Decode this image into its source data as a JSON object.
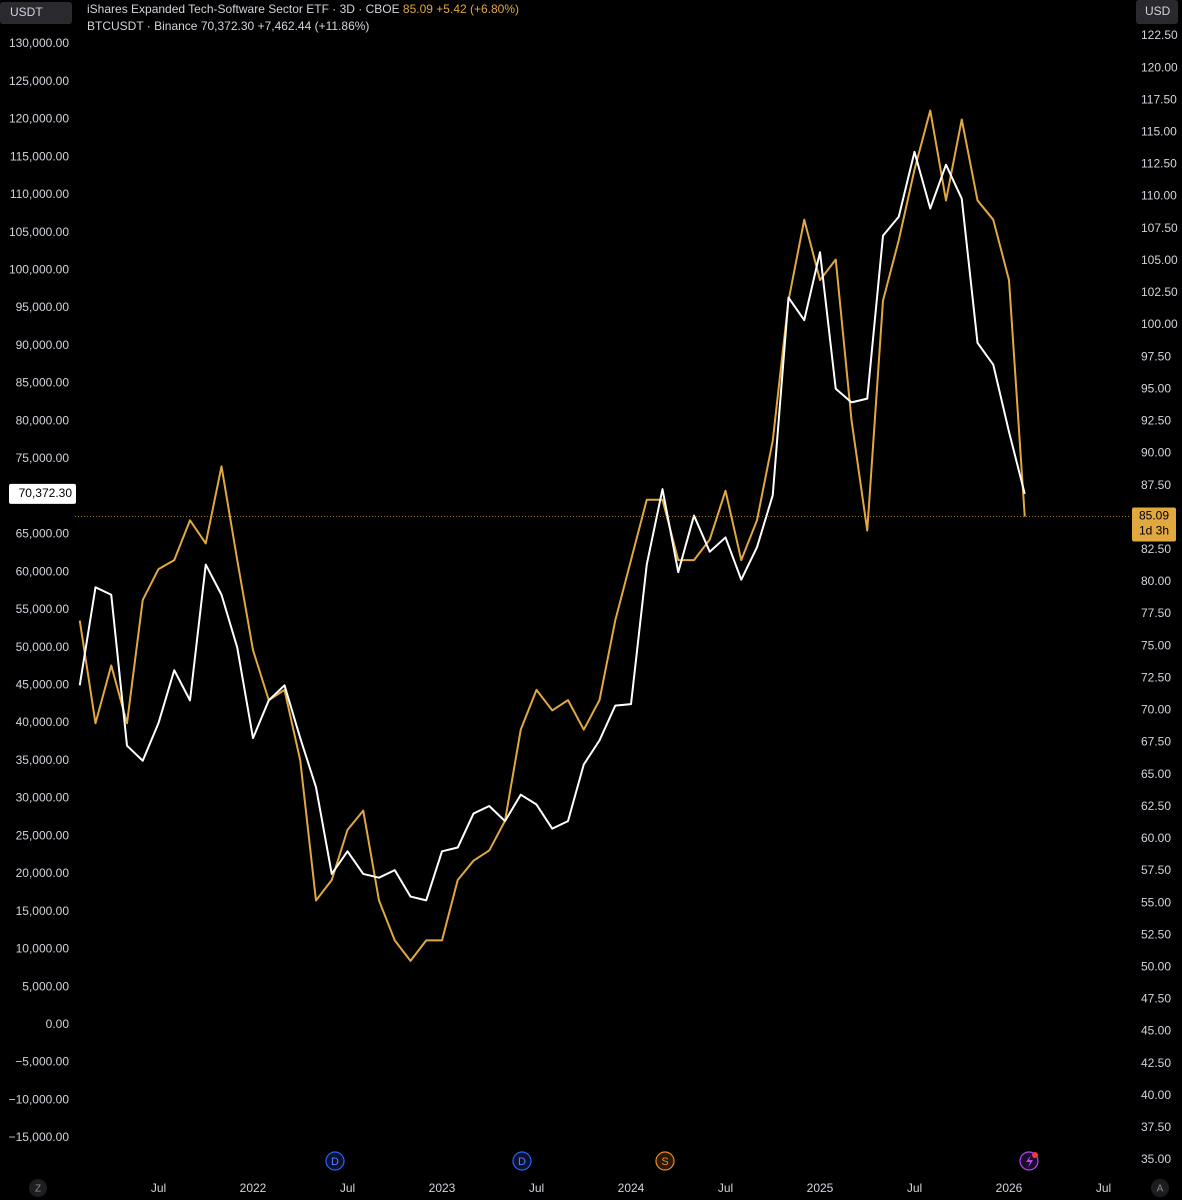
{
  "chart_data": {
    "type": "line",
    "x": [
      "2021-02",
      "2021-03",
      "2021-04",
      "2021-05",
      "2021-06",
      "2021-07",
      "2021-08",
      "2021-09",
      "2021-10",
      "2021-11",
      "2021-12",
      "2022-01",
      "2022-02",
      "2022-03",
      "2022-04",
      "2022-05",
      "2022-06",
      "2022-07",
      "2022-08",
      "2022-09",
      "2022-10",
      "2022-11",
      "2022-12",
      "2023-01",
      "2023-02",
      "2023-03",
      "2023-04",
      "2023-05",
      "2023-06",
      "2023-07",
      "2023-08",
      "2023-09",
      "2023-10",
      "2023-11",
      "2023-12",
      "2024-01",
      "2024-02",
      "2024-03",
      "2024-04",
      "2024-05",
      "2024-06",
      "2024-07",
      "2024-08",
      "2024-09",
      "2024-10",
      "2024-11",
      "2024-12",
      "2025-01",
      "2025-02",
      "2025-03",
      "2025-04",
      "2025-05",
      "2025-06",
      "2025-07",
      "2025-08",
      "2025-09",
      "2025-10",
      "2025-11",
      "2025-12",
      "2026-01",
      "2026-02"
    ],
    "xlim": [
      "2021-01",
      "2026-09"
    ],
    "xticks": [
      {
        "value": "2021-07",
        "label": "Jul"
      },
      {
        "value": "2022-01",
        "label": "2022"
      },
      {
        "value": "2022-07",
        "label": "Jul"
      },
      {
        "value": "2023-01",
        "label": "2023"
      },
      {
        "value": "2023-07",
        "label": "Jul"
      },
      {
        "value": "2024-01",
        "label": "2024"
      },
      {
        "value": "2024-07",
        "label": "Jul"
      },
      {
        "value": "2025-01",
        "label": "2025"
      },
      {
        "value": "2025-07",
        "label": "Jul"
      },
      {
        "value": "2026-01",
        "label": "2026"
      },
      {
        "value": "2026-07",
        "label": "Jul"
      }
    ],
    "y_unit": "USDT",
    "ylim": [
      -15000,
      130000
    ],
    "yticks": [
      {
        "value": 130000,
        "label": "130,000.00"
      },
      {
        "value": 125000,
        "label": "125,000.00"
      },
      {
        "value": 120000,
        "label": "120,000.00"
      },
      {
        "value": 115000,
        "label": "115,000.00"
      },
      {
        "value": 110000,
        "label": "110,000.00"
      },
      {
        "value": 105000,
        "label": "105,000.00"
      },
      {
        "value": 100000,
        "label": "100,000.00"
      },
      {
        "value": 95000,
        "label": "95,000.00"
      },
      {
        "value": 90000,
        "label": "90,000.00"
      },
      {
        "value": 85000,
        "label": "85,000.00"
      },
      {
        "value": 80000,
        "label": "80,000.00"
      },
      {
        "value": 75000,
        "label": "75,000.00"
      },
      {
        "value": 65000,
        "label": "65,000.00"
      },
      {
        "value": 60000,
        "label": "60,000.00"
      },
      {
        "value": 55000,
        "label": "55,000.00"
      },
      {
        "value": 50000,
        "label": "50,000.00"
      },
      {
        "value": 45000,
        "label": "45,000.00"
      },
      {
        "value": 40000,
        "label": "40,000.00"
      },
      {
        "value": 35000,
        "label": "35,000.00"
      },
      {
        "value": 30000,
        "label": "30,000.00"
      },
      {
        "value": 25000,
        "label": "25,000.00"
      },
      {
        "value": 20000,
        "label": "20,000.00"
      },
      {
        "value": 15000,
        "label": "15,000.00"
      },
      {
        "value": 10000,
        "label": "10,000.00"
      },
      {
        "value": 5000,
        "label": "5,000.00"
      },
      {
        "value": 0,
        "label": "0.00"
      },
      {
        "value": -5000,
        "label": "−5,000.00"
      },
      {
        "value": -10000,
        "label": "−10,000.00"
      },
      {
        "value": -15000,
        "label": "−15,000.00"
      }
    ],
    "y2_unit": "USD",
    "y2lim": [
      35,
      122.5
    ],
    "y2ticks": [
      {
        "value": 122.5,
        "label": "122.50"
      },
      {
        "value": 120,
        "label": "120.00"
      },
      {
        "value": 117.5,
        "label": "117.50"
      },
      {
        "value": 115,
        "label": "115.00"
      },
      {
        "value": 112.5,
        "label": "112.50"
      },
      {
        "value": 110,
        "label": "110.00"
      },
      {
        "value": 107.5,
        "label": "107.50"
      },
      {
        "value": 105,
        "label": "105.00"
      },
      {
        "value": 102.5,
        "label": "102.50"
      },
      {
        "value": 100,
        "label": "100.00"
      },
      {
        "value": 97.5,
        "label": "97.50"
      },
      {
        "value": 95,
        "label": "95.00"
      },
      {
        "value": 92.5,
        "label": "92.50"
      },
      {
        "value": 90,
        "label": "90.00"
      },
      {
        "value": 87.5,
        "label": "87.50"
      },
      {
        "value": 82.5,
        "label": "82.50"
      },
      {
        "value": 80,
        "label": "80.00"
      },
      {
        "value": 77.5,
        "label": "77.50"
      },
      {
        "value": 75,
        "label": "75.00"
      },
      {
        "value": 72.5,
        "label": "72.50"
      },
      {
        "value": 70,
        "label": "70.00"
      },
      {
        "value": 67.5,
        "label": "67.50"
      },
      {
        "value": 65,
        "label": "65.00"
      },
      {
        "value": 62.5,
        "label": "62.50"
      },
      {
        "value": 60,
        "label": "60.00"
      },
      {
        "value": 57.5,
        "label": "57.50"
      },
      {
        "value": 55,
        "label": "55.00"
      },
      {
        "value": 52.5,
        "label": "52.50"
      },
      {
        "value": 50,
        "label": "50.00"
      },
      {
        "value": 47.5,
        "label": "47.50"
      },
      {
        "value": 45,
        "label": "45.00"
      },
      {
        "value": 42.5,
        "label": "42.50"
      },
      {
        "value": 40,
        "label": "40.00"
      },
      {
        "value": 37.5,
        "label": "37.50"
      },
      {
        "value": 35,
        "label": "35.00"
      }
    ],
    "series": [
      {
        "name": "iShares Expanded Tech-Software Sector ETF · 3D · CBOE",
        "price": "85.09",
        "change": "+5.42 (+6.80%)",
        "countdown": "1d 3h",
        "color": "#e0a83e",
        "axis": "y2",
        "values": [
          77,
          69,
          73.5,
          69,
          78.6,
          81,
          81.7,
          84.8,
          83,
          89,
          81.7,
          74.7,
          70.8,
          71.6,
          66.1,
          55.2,
          56.8,
          60.7,
          62.2,
          55.2,
          52.1,
          50.5,
          52.1,
          52.1,
          56.8,
          58.3,
          59.1,
          61.4,
          68.5,
          71.6,
          70,
          70.8,
          68.5,
          70.8,
          77,
          81.7,
          86.4,
          86.4,
          81.7,
          81.7,
          83.3,
          87.1,
          81.7,
          84.8,
          91,
          101.9,
          108.2,
          103.5,
          105.1,
          92.6,
          84,
          101.9,
          106.6,
          112.1,
          116.7,
          109.7,
          116,
          109.7,
          108.2,
          103.5,
          85.09
        ]
      },
      {
        "name": "BTCUSDT · Binance",
        "price": "70,372.30",
        "change": "+7,462.44 (+11.86%)",
        "color": "#ffffff",
        "axis": "y",
        "values": [
          45000,
          58000,
          57000,
          37000,
          35000,
          40000,
          47000,
          43000,
          61000,
          57000,
          50000,
          38000,
          43000,
          45000,
          38000,
          31500,
          20000,
          23000,
          20000,
          19500,
          20500,
          17000,
          16500,
          23000,
          23500,
          28000,
          29000,
          27000,
          30500,
          29200,
          26000,
          27000,
          34500,
          37700,
          42300,
          42500,
          61000,
          71000,
          60000,
          67500,
          62700,
          64600,
          59000,
          63300,
          70200,
          96400,
          93400,
          102400,
          84300,
          82500,
          83000,
          104600,
          107100,
          115700,
          108200,
          114000,
          109500,
          90400,
          87500,
          78600,
          70372.3
        ]
      }
    ]
  },
  "ui": {
    "events": [
      "D",
      "D",
      "S"
    ],
    "left_button": "Z",
    "right_button": "A"
  }
}
